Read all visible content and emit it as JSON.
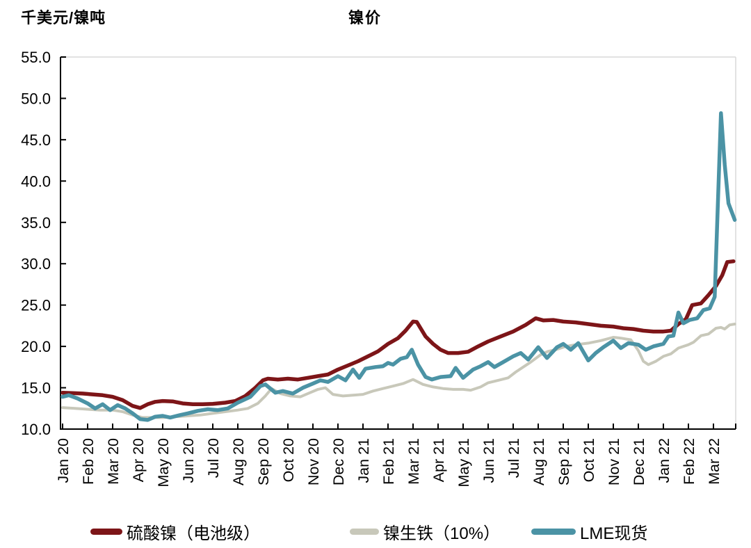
{
  "header": {
    "unit_label": "千美元/镍吨",
    "title": "镍价"
  },
  "chart_data": {
    "type": "line",
    "title": "镍价",
    "ylabel": "千美元/镍吨",
    "ylim": [
      10,
      55
    ],
    "ytick_step": 5,
    "ytick_labels": [
      "10.0",
      "15.0",
      "20.0",
      "25.0",
      "30.0",
      "35.0",
      "40.0",
      "45.0",
      "50.0",
      "55.0"
    ],
    "x_labels": [
      "Jan 20",
      "Feb 20",
      "Mar 20",
      "Apr 20",
      "May 20",
      "Jun 20",
      "Jul 20",
      "Aug 20",
      "Sep 20",
      "Oct 20",
      "Nov 20",
      "Dec 20",
      "Jan 21",
      "Feb 21",
      "Mar 21",
      "Apr 21",
      "May 21",
      "Jun 21",
      "Jul 21",
      "Aug 21",
      "Sep 21",
      "Oct 21",
      "Nov 21",
      "Dec 21",
      "Jan 22",
      "Feb 22",
      "Mar 22"
    ],
    "x_unit": "month index from Jan 20",
    "grid": "off",
    "legend_position": "bottom",
    "axis_color": "#000000",
    "frame_color": "#d9d9d9",
    "series": [
      {
        "name": "硫酸镍（电池级）",
        "color": "#7D1518",
        "width": 5.5,
        "points": [
          [
            0,
            14.4
          ],
          [
            0.4,
            14.35
          ],
          [
            0.8,
            14.3
          ],
          [
            1.2,
            14.2
          ],
          [
            1.6,
            14.1
          ],
          [
            2,
            13.9
          ],
          [
            2.4,
            13.5
          ],
          [
            2.8,
            12.8
          ],
          [
            3.1,
            12.55
          ],
          [
            3.4,
            13.0
          ],
          [
            3.7,
            13.3
          ],
          [
            4,
            13.4
          ],
          [
            4.4,
            13.35
          ],
          [
            4.8,
            13.1
          ],
          [
            5.2,
            13.0
          ],
          [
            5.6,
            13.0
          ],
          [
            6,
            13.05
          ],
          [
            6.5,
            13.2
          ],
          [
            6.9,
            13.4
          ],
          [
            7.3,
            14.0
          ],
          [
            7.7,
            15.0
          ],
          [
            8,
            15.9
          ],
          [
            8.2,
            16.1
          ],
          [
            8.6,
            16.0
          ],
          [
            9,
            16.1
          ],
          [
            9.4,
            16.0
          ],
          [
            9.8,
            16.2
          ],
          [
            10.2,
            16.4
          ],
          [
            10.6,
            16.6
          ],
          [
            11,
            17.2
          ],
          [
            11.4,
            17.7
          ],
          [
            11.8,
            18.2
          ],
          [
            12.2,
            18.8
          ],
          [
            12.6,
            19.4
          ],
          [
            13,
            20.3
          ],
          [
            13.4,
            21.0
          ],
          [
            13.7,
            21.9
          ],
          [
            14,
            23.0
          ],
          [
            14.15,
            22.95
          ],
          [
            14.5,
            21.2
          ],
          [
            14.8,
            20.3
          ],
          [
            15.1,
            19.6
          ],
          [
            15.4,
            19.2
          ],
          [
            15.8,
            19.2
          ],
          [
            16.2,
            19.35
          ],
          [
            16.6,
            20.0
          ],
          [
            17,
            20.6
          ],
          [
            17.5,
            21.2
          ],
          [
            18,
            21.8
          ],
          [
            18.5,
            22.6
          ],
          [
            18.9,
            23.4
          ],
          [
            19.2,
            23.15
          ],
          [
            19.6,
            23.2
          ],
          [
            20,
            23.0
          ],
          [
            20.5,
            22.9
          ],
          [
            21,
            22.7
          ],
          [
            21.5,
            22.5
          ],
          [
            22,
            22.4
          ],
          [
            22.4,
            22.2
          ],
          [
            22.8,
            22.1
          ],
          [
            23.2,
            21.9
          ],
          [
            23.6,
            21.8
          ],
          [
            24,
            21.8
          ],
          [
            24.3,
            21.9
          ],
          [
            24.6,
            22.7
          ],
          [
            24.9,
            23.3
          ],
          [
            25.15,
            25.0
          ],
          [
            25.5,
            25.2
          ],
          [
            25.8,
            26.2
          ],
          [
            26.1,
            27.3
          ],
          [
            26.35,
            28.6
          ],
          [
            26.55,
            30.2
          ],
          [
            26.8,
            30.3
          ]
        ]
      },
      {
        "name": "镍生铁（10%）",
        "color": "#C8C8BA",
        "width": 4,
        "points": [
          [
            0,
            12.6
          ],
          [
            0.5,
            12.5
          ],
          [
            1,
            12.4
          ],
          [
            1.5,
            12.3
          ],
          [
            2,
            12.3
          ],
          [
            2.4,
            12.1
          ],
          [
            2.8,
            11.7
          ],
          [
            3.2,
            11.4
          ],
          [
            3.6,
            11.4
          ],
          [
            4,
            11.4
          ],
          [
            4.5,
            11.5
          ],
          [
            5,
            11.6
          ],
          [
            5.5,
            11.7
          ],
          [
            6,
            11.9
          ],
          [
            6.5,
            12.1
          ],
          [
            7,
            12.3
          ],
          [
            7.4,
            12.5
          ],
          [
            7.8,
            13.1
          ],
          [
            8.1,
            14.0
          ],
          [
            8.35,
            14.9
          ],
          [
            8.7,
            14.3
          ],
          [
            9.1,
            14.0
          ],
          [
            9.5,
            13.9
          ],
          [
            9.8,
            14.3
          ],
          [
            10.2,
            14.8
          ],
          [
            10.5,
            15.0
          ],
          [
            10.8,
            14.2
          ],
          [
            11.2,
            14.0
          ],
          [
            11.6,
            14.1
          ],
          [
            12,
            14.2
          ],
          [
            12.4,
            14.6
          ],
          [
            12.8,
            14.9
          ],
          [
            13.2,
            15.2
          ],
          [
            13.6,
            15.5
          ],
          [
            14,
            16.0
          ],
          [
            14.4,
            15.4
          ],
          [
            14.8,
            15.1
          ],
          [
            15.2,
            14.9
          ],
          [
            15.6,
            14.8
          ],
          [
            16,
            14.8
          ],
          [
            16.3,
            14.7
          ],
          [
            16.7,
            15.1
          ],
          [
            17,
            15.6
          ],
          [
            17.4,
            15.9
          ],
          [
            17.8,
            16.2
          ],
          [
            18.1,
            16.9
          ],
          [
            18.4,
            17.5
          ],
          [
            18.7,
            18.1
          ],
          [
            19.1,
            19.0
          ],
          [
            19.4,
            19.4
          ],
          [
            19.7,
            19.6
          ],
          [
            20.1,
            20.0
          ],
          [
            20.5,
            20.2
          ],
          [
            21,
            20.4
          ],
          [
            21.5,
            20.7
          ],
          [
            22,
            21.1
          ],
          [
            22.3,
            21.0
          ],
          [
            22.7,
            20.8
          ],
          [
            23,
            19.5
          ],
          [
            23.2,
            18.2
          ],
          [
            23.4,
            17.8
          ],
          [
            23.7,
            18.2
          ],
          [
            24,
            18.8
          ],
          [
            24.3,
            19.1
          ],
          [
            24.6,
            19.8
          ],
          [
            25,
            20.2
          ],
          [
            25.2,
            20.5
          ],
          [
            25.5,
            21.3
          ],
          [
            25.8,
            21.5
          ],
          [
            26.1,
            22.2
          ],
          [
            26.3,
            22.3
          ],
          [
            26.45,
            22.1
          ],
          [
            26.65,
            22.6
          ],
          [
            26.85,
            22.7
          ]
        ]
      },
      {
        "name": "LME现货",
        "color": "#4B93A5",
        "width": 5.5,
        "points": [
          [
            0,
            13.9
          ],
          [
            0.25,
            14.1
          ],
          [
            0.6,
            13.7
          ],
          [
            1,
            13.1
          ],
          [
            1.3,
            12.5
          ],
          [
            1.6,
            13.0
          ],
          [
            1.9,
            12.3
          ],
          [
            2.2,
            12.9
          ],
          [
            2.5,
            12.5
          ],
          [
            2.8,
            11.9
          ],
          [
            3.1,
            11.2
          ],
          [
            3.4,
            11.1
          ],
          [
            3.7,
            11.5
          ],
          [
            4,
            11.6
          ],
          [
            4.3,
            11.4
          ],
          [
            4.7,
            11.7
          ],
          [
            5,
            11.9
          ],
          [
            5.4,
            12.2
          ],
          [
            5.8,
            12.4
          ],
          [
            6.2,
            12.3
          ],
          [
            6.6,
            12.5
          ],
          [
            7,
            13.2
          ],
          [
            7.5,
            13.9
          ],
          [
            7.9,
            15.2
          ],
          [
            8.1,
            15.4
          ],
          [
            8.5,
            14.4
          ],
          [
            8.8,
            14.6
          ],
          [
            9.2,
            14.3
          ],
          [
            9.6,
            15.0
          ],
          [
            10,
            15.5
          ],
          [
            10.3,
            15.9
          ],
          [
            10.6,
            15.7
          ],
          [
            11,
            16.4
          ],
          [
            11.3,
            15.9
          ],
          [
            11.6,
            17.2
          ],
          [
            11.85,
            16.2
          ],
          [
            12.1,
            17.3
          ],
          [
            12.5,
            17.5
          ],
          [
            12.8,
            17.6
          ],
          [
            13,
            18.0
          ],
          [
            13.2,
            17.8
          ],
          [
            13.5,
            18.5
          ],
          [
            13.75,
            18.7
          ],
          [
            13.95,
            19.6
          ],
          [
            14.2,
            17.8
          ],
          [
            14.5,
            16.3
          ],
          [
            14.75,
            16.0
          ],
          [
            15.1,
            16.3
          ],
          [
            15.5,
            16.4
          ],
          [
            15.7,
            17.4
          ],
          [
            16,
            16.2
          ],
          [
            16.4,
            17.2
          ],
          [
            16.7,
            17.6
          ],
          [
            17,
            18.1
          ],
          [
            17.25,
            17.5
          ],
          [
            17.6,
            18.1
          ],
          [
            18,
            18.8
          ],
          [
            18.3,
            19.2
          ],
          [
            18.6,
            18.4
          ],
          [
            19,
            19.9
          ],
          [
            19.35,
            18.6
          ],
          [
            19.75,
            19.9
          ],
          [
            20,
            20.3
          ],
          [
            20.3,
            19.6
          ],
          [
            20.6,
            20.4
          ],
          [
            21,
            18.3
          ],
          [
            21.3,
            19.2
          ],
          [
            21.6,
            19.9
          ],
          [
            22,
            20.7
          ],
          [
            22.3,
            19.8
          ],
          [
            22.6,
            20.4
          ],
          [
            23,
            20.2
          ],
          [
            23.3,
            19.6
          ],
          [
            23.6,
            20.0
          ],
          [
            24,
            20.3
          ],
          [
            24.2,
            21.2
          ],
          [
            24.4,
            21.3
          ],
          [
            24.6,
            24.1
          ],
          [
            24.8,
            22.8
          ],
          [
            25.05,
            23.2
          ],
          [
            25.35,
            23.4
          ],
          [
            25.6,
            24.4
          ],
          [
            25.85,
            24.6
          ],
          [
            26.05,
            26.0
          ],
          [
            26.3,
            48.2
          ],
          [
            26.45,
            42.0
          ],
          [
            26.6,
            37.3
          ],
          [
            26.85,
            35.3
          ]
        ]
      }
    ]
  },
  "legend": {
    "items": [
      {
        "label": "硫酸镍（电池级）",
        "color": "#7D1518"
      },
      {
        "label": "镍生铁（10%）",
        "color": "#C8C8BA"
      },
      {
        "label": "LME现货",
        "color": "#4B93A5"
      }
    ]
  }
}
